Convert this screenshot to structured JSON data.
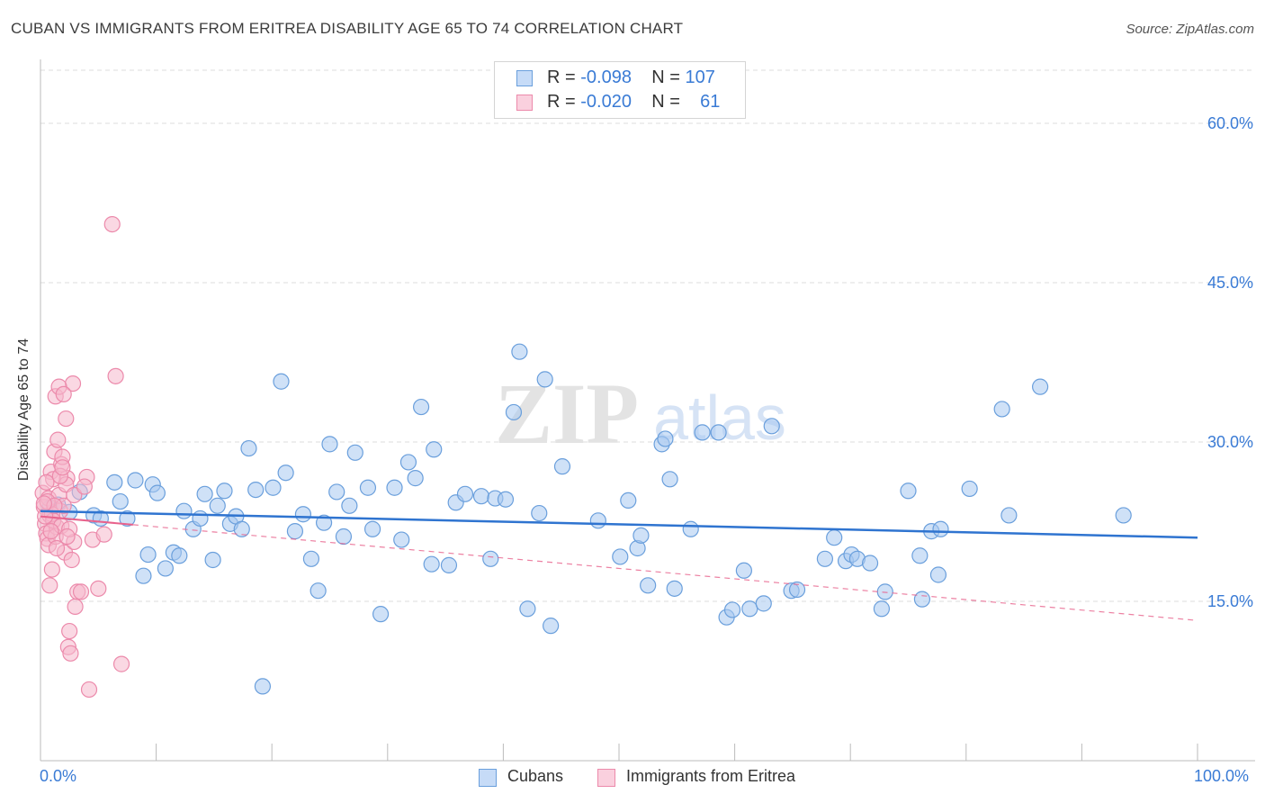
{
  "header": {
    "title": "CUBAN VS IMMIGRANTS FROM ERITREA DISABILITY AGE 65 TO 74 CORRELATION CHART",
    "source": "Source: ZipAtlas.com"
  },
  "watermark": {
    "zip": "ZIP",
    "atlas": "atlas"
  },
  "legend": {
    "rows": [
      {
        "r_label": "R = ",
        "r_value": "-0.098",
        "n_label": "N = ",
        "n_value": "107",
        "color": "#a8c8f0"
      },
      {
        "r_label": "R = ",
        "r_value": "-0.020",
        "n_label": "N = ",
        "n_value": "61",
        "color": "#f5b8cc"
      }
    ]
  },
  "bottom_legend": {
    "items": [
      {
        "label": "Cubans",
        "color": "#a8c8f0"
      },
      {
        "label": "Immigrants from Eritrea",
        "color": "#f5b8cc"
      }
    ]
  },
  "colors": {
    "cubans_fill": "#a8c8f0",
    "cubans_stroke": "#6a9fdc",
    "cubans_line": "#2f74d0",
    "eritrea_fill": "#f5b8cc",
    "eritrea_stroke": "#ec8aab",
    "eritrea_line": "#e8628c",
    "grid": "#dddddd",
    "axis_text": "#3a7bd5"
  },
  "chart_data": {
    "type": "scatter",
    "title": "CUBAN VS IMMIGRANTS FROM ERITREA DISABILITY AGE 65 TO 74 CORRELATION CHART",
    "xlabel": "",
    "ylabel": "Disability Age 65 to 74",
    "xlim": [
      0,
      100
    ],
    "ylim": [
      0,
      65
    ],
    "x_tick_labels": [
      "0.0%",
      "100.0%"
    ],
    "y_ticks": [
      15,
      30,
      45,
      60
    ],
    "y_tick_labels": [
      "15.0%",
      "30.0%",
      "45.0%",
      "60.0%"
    ],
    "grid": true,
    "legend_position": "top-center",
    "series": [
      {
        "name": "Cubans",
        "r": -0.098,
        "n": 107,
        "trend": {
          "x": [
            0,
            100
          ],
          "y": [
            23.5,
            21.0
          ],
          "style": "solid"
        },
        "points": [
          [
            0.8,
            23.8
          ],
          [
            1.5,
            24.1
          ],
          [
            2.5,
            23.4
          ],
          [
            3.4,
            25.3
          ],
          [
            4.6,
            23.1
          ],
          [
            5.2,
            22.8
          ],
          [
            6.4,
            26.2
          ],
          [
            6.9,
            24.4
          ],
          [
            7.5,
            22.8
          ],
          [
            8.2,
            26.4
          ],
          [
            8.9,
            17.4
          ],
          [
            9.3,
            19.4
          ],
          [
            9.7,
            26.0
          ],
          [
            10.1,
            25.2
          ],
          [
            10.8,
            18.1
          ],
          [
            11.5,
            19.6
          ],
          [
            12.0,
            19.3
          ],
          [
            12.4,
            23.5
          ],
          [
            13.2,
            21.8
          ],
          [
            13.8,
            22.8
          ],
          [
            14.2,
            25.1
          ],
          [
            14.9,
            18.9
          ],
          [
            15.3,
            24.0
          ],
          [
            15.9,
            25.4
          ],
          [
            16.4,
            22.3
          ],
          [
            16.9,
            23.0
          ],
          [
            17.4,
            21.8
          ],
          [
            18.0,
            29.4
          ],
          [
            18.6,
            25.5
          ],
          [
            19.2,
            7.0
          ],
          [
            20.1,
            25.7
          ],
          [
            20.8,
            35.7
          ],
          [
            21.2,
            27.1
          ],
          [
            22.0,
            21.6
          ],
          [
            22.7,
            23.2
          ],
          [
            23.4,
            19.0
          ],
          [
            24.0,
            16.0
          ],
          [
            24.5,
            22.4
          ],
          [
            25.0,
            29.8
          ],
          [
            25.6,
            25.3
          ],
          [
            26.2,
            21.1
          ],
          [
            26.7,
            24.0
          ],
          [
            27.2,
            29.0
          ],
          [
            28.3,
            25.7
          ],
          [
            28.7,
            21.8
          ],
          [
            29.4,
            13.8
          ],
          [
            30.6,
            25.7
          ],
          [
            31.2,
            20.8
          ],
          [
            31.8,
            28.1
          ],
          [
            32.4,
            26.6
          ],
          [
            32.9,
            33.3
          ],
          [
            33.8,
            18.5
          ],
          [
            34.0,
            29.3
          ],
          [
            35.3,
            18.4
          ],
          [
            35.9,
            24.3
          ],
          [
            36.7,
            25.1
          ],
          [
            38.1,
            24.9
          ],
          [
            38.9,
            19.0
          ],
          [
            39.3,
            24.7
          ],
          [
            40.2,
            24.6
          ],
          [
            40.9,
            32.8
          ],
          [
            42.1,
            14.3
          ],
          [
            41.4,
            38.5
          ],
          [
            43.1,
            23.3
          ],
          [
            44.1,
            12.7
          ],
          [
            43.6,
            35.9
          ],
          [
            45.1,
            27.7
          ],
          [
            48.2,
            22.6
          ],
          [
            50.1,
            19.2
          ],
          [
            50.8,
            24.5
          ],
          [
            51.6,
            20.0
          ],
          [
            51.9,
            21.2
          ],
          [
            52.5,
            16.5
          ],
          [
            53.7,
            29.8
          ],
          [
            54.0,
            30.3
          ],
          [
            54.4,
            26.5
          ],
          [
            54.8,
            16.2
          ],
          [
            56.2,
            21.8
          ],
          [
            57.2,
            30.9
          ],
          [
            58.6,
            30.9
          ],
          [
            59.3,
            13.5
          ],
          [
            59.8,
            14.2
          ],
          [
            60.8,
            17.9
          ],
          [
            61.3,
            14.3
          ],
          [
            62.5,
            14.8
          ],
          [
            63.2,
            31.5
          ],
          [
            64.9,
            16.0
          ],
          [
            65.4,
            16.1
          ],
          [
            67.8,
            19.0
          ],
          [
            68.6,
            21.0
          ],
          [
            69.6,
            18.8
          ],
          [
            70.1,
            19.4
          ],
          [
            70.6,
            19.0
          ],
          [
            71.7,
            18.6
          ],
          [
            72.7,
            14.3
          ],
          [
            73.0,
            15.9
          ],
          [
            75.0,
            25.4
          ],
          [
            76.0,
            19.3
          ],
          [
            76.2,
            15.2
          ],
          [
            77.0,
            21.6
          ],
          [
            77.6,
            17.5
          ],
          [
            77.8,
            21.8
          ],
          [
            80.3,
            25.6
          ],
          [
            83.1,
            33.1
          ],
          [
            83.7,
            23.1
          ],
          [
            86.4,
            35.2
          ],
          [
            93.6,
            23.1
          ]
        ]
      },
      {
        "name": "Immigrants from Eritrea",
        "r": -0.02,
        "n": 61,
        "trend": {
          "x": [
            0,
            100
          ],
          "y": [
            23.0,
            13.2
          ],
          "style": "solid-then-dashed",
          "solid_until_x": 8.0
        },
        "points": [
          [
            0.2,
            25.2
          ],
          [
            0.3,
            23.9
          ],
          [
            0.4,
            22.3
          ],
          [
            0.5,
            21.4
          ],
          [
            0.6,
            20.9
          ],
          [
            0.7,
            24.7
          ],
          [
            0.8,
            23.1
          ],
          [
            0.9,
            27.2
          ],
          [
            1.0,
            18.0
          ],
          [
            1.1,
            26.5
          ],
          [
            1.2,
            29.1
          ],
          [
            1.3,
            34.3
          ],
          [
            1.4,
            22.0
          ],
          [
            1.5,
            30.2
          ],
          [
            1.6,
            25.0
          ],
          [
            1.7,
            23.5
          ],
          [
            1.8,
            27.9
          ],
          [
            1.9,
            28.6
          ],
          [
            2.0,
            24.0
          ],
          [
            2.1,
            19.6
          ],
          [
            2.2,
            32.2
          ],
          [
            2.3,
            26.6
          ],
          [
            2.4,
            10.7
          ],
          [
            2.5,
            12.2
          ],
          [
            2.6,
            10.1
          ],
          [
            2.7,
            18.9
          ],
          [
            2.8,
            35.5
          ],
          [
            2.9,
            20.6
          ],
          [
            3.0,
            14.5
          ],
          [
            3.2,
            15.9
          ],
          [
            0.5,
            26.2
          ],
          [
            0.7,
            20.3
          ],
          [
            0.8,
            16.5
          ],
          [
            1.0,
            23.2
          ],
          [
            1.1,
            22.6
          ],
          [
            1.3,
            21.1
          ],
          [
            1.6,
            35.2
          ],
          [
            1.8,
            22.1
          ],
          [
            2.0,
            34.5
          ],
          [
            2.2,
            26.0
          ],
          [
            2.5,
            21.8
          ],
          [
            2.9,
            25.0
          ],
          [
            3.5,
            15.9
          ],
          [
            4.0,
            26.7
          ],
          [
            4.2,
            6.7
          ],
          [
            4.5,
            20.8
          ],
          [
            5.0,
            16.2
          ],
          [
            5.5,
            21.3
          ],
          [
            6.5,
            36.2
          ],
          [
            6.2,
            50.5
          ],
          [
            7.0,
            9.1
          ],
          [
            0.4,
            23.0
          ],
          [
            0.6,
            24.4
          ],
          [
            0.9,
            21.6
          ],
          [
            1.2,
            24.0
          ],
          [
            1.4,
            20.0
          ],
          [
            1.7,
            26.8
          ],
          [
            2.3,
            21.1
          ],
          [
            3.8,
            25.8
          ],
          [
            0.3,
            24.2
          ],
          [
            1.9,
            27.6
          ]
        ]
      }
    ]
  }
}
